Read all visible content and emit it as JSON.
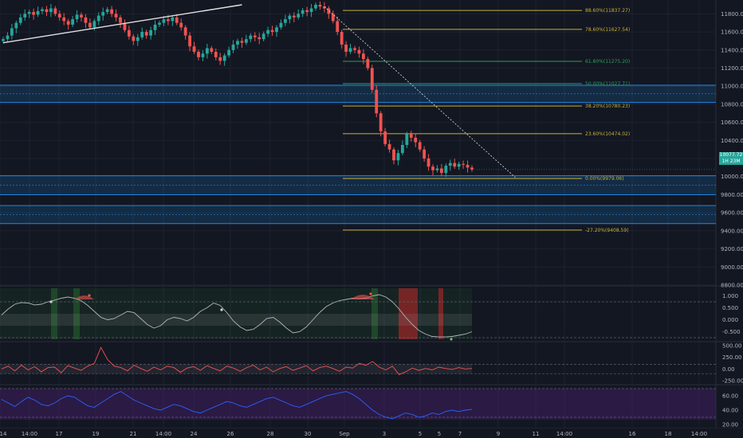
{
  "colors": {
    "background": "#131722",
    "grid": "#1e2230",
    "pane_border": "#2a2e39",
    "axis_text": "#b2b5be",
    "up": "#26a69a",
    "down": "#ef5350",
    "fib_gold": "#c9b037",
    "fib_green": "#2e9e5b",
    "zone_blue": "#1e88e5",
    "oscillator_line": "#b2b5be",
    "oscillator_band": "#2a2e39",
    "volatility_line": "#ef5350",
    "rsi_line": "#2962ff",
    "rsi_band": "#4a1f6e",
    "price_tag": "#26a69a",
    "highlight_green": "#2e7d32",
    "highlight_red": "#c62828",
    "marker_red": "#ef5350",
    "marker_green": "#66bb6a"
  },
  "price_tag": {
    "value": "10077.72",
    "sub": "1H 23M"
  },
  "chart_data": [
    {
      "type": "candlestick",
      "title": "",
      "xlabel": "",
      "ylabel": "",
      "ylim": [
        8800,
        11900
      ],
      "y_ticks": [
        "11800.00",
        "11600.00",
        "11400.00",
        "11200.00",
        "11000.00",
        "10800.00",
        "10600.00",
        "10400.00",
        "10200.00",
        "10000.00",
        "9800.00",
        "9600.00",
        "9400.00",
        "9200.00",
        "9000.00",
        "8800.00"
      ],
      "y_tick_values": [
        11800,
        11600,
        11400,
        11200,
        11000,
        10800,
        10600,
        10400,
        10200,
        10000,
        9800,
        9600,
        9400,
        9200,
        9000,
        8800
      ],
      "x_ticks": [
        "14",
        "14:00",
        "17",
        "19",
        "21",
        "14:00",
        "24",
        "26",
        "28",
        "30",
        "Sep",
        "3",
        "5",
        "5",
        "7",
        "9",
        "11",
        "14:00",
        "16",
        "18",
        "14:00"
      ],
      "close_series": [
        11520,
        11560,
        11640,
        11700,
        11760,
        11800,
        11820,
        11790,
        11830,
        11850,
        11820,
        11860,
        11800,
        11760,
        11720,
        11680,
        11740,
        11790,
        11760,
        11700,
        11650,
        11720,
        11780,
        11820,
        11850,
        11800,
        11760,
        11700,
        11620,
        11550,
        11500,
        11540,
        11600,
        11560,
        11620,
        11680,
        11700,
        11740,
        11720,
        11760,
        11700,
        11650,
        11560,
        11440,
        11380,
        11320,
        11360,
        11420,
        11380,
        11320,
        11280,
        11340,
        11400,
        11460,
        11500,
        11480,
        11520,
        11560,
        11540,
        11520,
        11580,
        11620,
        11600,
        11650,
        11700,
        11740,
        11780,
        11760,
        11800,
        11840,
        11820,
        11860,
        11900,
        11880,
        11860,
        11800,
        11720,
        11600,
        11460,
        11380,
        11420,
        11400,
        11360,
        11300,
        11200,
        10960,
        10700,
        10500,
        10360,
        10300,
        10180,
        10260,
        10350,
        10470,
        10430,
        10380,
        10300,
        10200,
        10110,
        10070,
        10090,
        10040,
        10120,
        10150,
        10110,
        10140,
        10130,
        10100,
        10078
      ],
      "fib_levels": [
        {
          "label": "88.60%(11837.27)",
          "value": 11837.27,
          "color": "gold"
        },
        {
          "label": "78.60%(11627.54)",
          "value": 11627.54,
          "color": "gold"
        },
        {
          "label": "61.80%(11275.20)",
          "value": 11275.2,
          "color": "green"
        },
        {
          "label": "50.00%(11027.71)",
          "value": 11027.71,
          "color": "green"
        },
        {
          "label": "38.20%(10780.23)",
          "value": 10780.23,
          "color": "gold"
        },
        {
          "label": "23.60%(10474.02)",
          "value": 10474.02,
          "color": "gold"
        },
        {
          "label": "0.00%(9979.06)",
          "value": 9979.06,
          "color": "gold"
        },
        {
          "label": "-27.20%(9408.59)",
          "value": 9408.59,
          "color": "gold"
        }
      ],
      "zones": [
        {
          "from": 10820,
          "to": 11010
        },
        {
          "from": 9800,
          "to": 10010
        },
        {
          "from": 9480,
          "to": 9680
        }
      ],
      "trend_lines": [
        {
          "points": [
            [
              0,
              11480
            ],
            [
              55,
              11900
            ]
          ],
          "style": "solid"
        },
        {
          "points": [
            [
              74,
              11880
            ],
            [
              118,
              9990
            ]
          ],
          "style": "dashed"
        }
      ]
    },
    {
      "type": "line",
      "title": "",
      "ylim": [
        -0.75,
        1.25
      ],
      "y_ticks": [
        "1.000",
        "0.500",
        "0.000",
        "-0.500"
      ],
      "y_tick_values": [
        1.0,
        0.5,
        0.0,
        -0.5
      ],
      "threshold_lines": [
        0.75,
        -0.75
      ],
      "values": [
        0.2,
        0.45,
        0.65,
        0.72,
        0.7,
        0.62,
        0.65,
        0.75,
        0.82,
        0.9,
        0.95,
        0.9,
        0.8,
        0.6,
        0.35,
        0.1,
        0.0,
        0.05,
        0.2,
        0.35,
        0.3,
        0.05,
        -0.2,
        -0.35,
        -0.25,
        0.0,
        0.1,
        0.05,
        -0.05,
        0.1,
        0.35,
        0.5,
        0.7,
        0.6,
        0.3,
        -0.05,
        -0.3,
        -0.45,
        -0.4,
        -0.2,
        0.05,
        0.1,
        -0.1,
        -0.35,
        -0.55,
        -0.5,
        -0.3,
        0.0,
        0.3,
        0.55,
        0.7,
        0.8,
        0.85,
        0.9,
        0.88,
        0.9,
        1.0,
        1.05,
        0.95,
        0.75,
        0.45,
        0.1,
        -0.2,
        -0.45,
        -0.6,
        -0.7,
        -0.72,
        -0.72,
        -0.7,
        -0.65,
        -0.6,
        -0.5
      ]
    },
    {
      "type": "line",
      "title": "",
      "ylim": [
        -250,
        500
      ],
      "y_ticks": [
        "500.00",
        "250.00",
        "0.00",
        "-250.00"
      ],
      "y_tick_values": [
        500,
        250,
        0,
        -250
      ],
      "threshold_lines": [
        100,
        -100
      ],
      "values": [
        0,
        60,
        -40,
        80,
        -20,
        50,
        -60,
        30,
        40,
        -80,
        70,
        20,
        -30,
        60,
        120,
        460,
        200,
        60,
        30,
        -40,
        80,
        10,
        -50,
        40,
        -20,
        60,
        30,
        -70,
        20,
        50,
        -30,
        70,
        10,
        -40,
        60,
        20,
        -50,
        30,
        80,
        -20,
        40,
        -60,
        10,
        50,
        -30,
        20,
        70,
        -40,
        30,
        60,
        10,
        -50,
        40,
        20,
        120,
        80,
        160,
        40,
        -20,
        60,
        -120,
        -60,
        20,
        -30,
        10,
        -20,
        40,
        10,
        -10,
        30,
        0,
        10
      ]
    },
    {
      "type": "line",
      "title": "",
      "ylim": [
        20,
        70
      ],
      "y_ticks": [
        "60.00",
        "40.00",
        "20.00"
      ],
      "y_tick_values": [
        60,
        40,
        20
      ],
      "threshold_lines": [
        70,
        30
      ],
      "values": [
        55,
        50,
        45,
        52,
        58,
        54,
        48,
        46,
        50,
        56,
        60,
        58,
        52,
        46,
        44,
        50,
        56,
        62,
        66,
        60,
        54,
        50,
        46,
        42,
        40,
        44,
        48,
        46,
        42,
        38,
        36,
        40,
        44,
        48,
        52,
        50,
        46,
        44,
        48,
        52,
        56,
        58,
        54,
        50,
        46,
        44,
        48,
        52,
        56,
        60,
        62,
        64,
        66,
        62,
        56,
        48,
        40,
        34,
        30,
        28,
        32,
        36,
        34,
        30,
        32,
        36,
        34,
        38,
        40,
        38,
        40,
        41
      ]
    }
  ]
}
